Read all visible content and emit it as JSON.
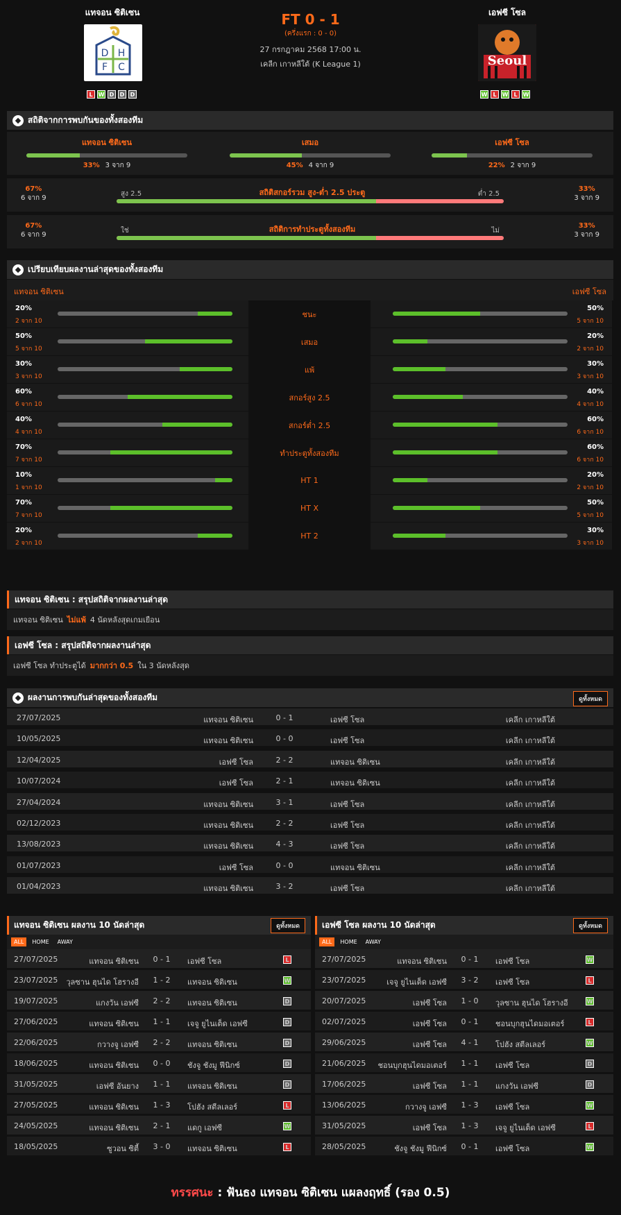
{
  "match": {
    "home": "แทจอน ซิติเซน",
    "away": "เอฟซี โซล",
    "score": "FT 0 - 1",
    "half": "(ครึ่งแรก : 0 - 0)",
    "datetime": "27 กรกฎาคม 2568 17:00 น.",
    "league": "เคลีก เกาหลีใต้ (K League 1)",
    "home_logo_text": [
      "D",
      "H",
      "F",
      "C"
    ],
    "away_logo_text": "Seoul",
    "home_form": [
      "L",
      "W",
      "D",
      "D",
      "D"
    ],
    "away_form": [
      "W",
      "L",
      "W",
      "L",
      "W"
    ]
  },
  "h2h_stats": {
    "title": "สถิติจากการพบกันของทั้งสองทีม",
    "cols": [
      {
        "label": "แทจอน ซิติเซน",
        "pct": "33%",
        "count": "3 จาก 9",
        "value": 0.33
      },
      {
        "label": "เสมอ",
        "pct": "45%",
        "count": "4 จาก 9",
        "value": 0.45
      },
      {
        "label": "เอฟซี โซล",
        "pct": "22%",
        "count": "2 จาก 9",
        "value": 0.22
      }
    ],
    "ou": {
      "title": "สถิติสกอร์รวม สูง-ต่ำ 2.5 ประตู",
      "left_label": "สูง 2.5",
      "right_label": "ต่ำ 2.5",
      "left_pct": "67%",
      "left_count": "6 จาก 9",
      "right_pct": "33%",
      "right_count": "3 จาก 9",
      "value": 0.67
    },
    "btts": {
      "title": "สถิติการทำประตูทั้งสองทีม",
      "left_label": "ใช่",
      "right_label": "ไม่",
      "left_pct": "67%",
      "left_count": "6 จาก 9",
      "right_pct": "33%",
      "right_count": "3 จาก 9",
      "value": 0.67
    }
  },
  "compare": {
    "title": "เปรียบเทียบผลงานล่าสุดของทั้งสองทีม",
    "home": "แทจอน ซิติเซน",
    "away": "เอฟซี โซล",
    "rows": [
      {
        "label": "ชนะ",
        "hp": "20%",
        "hc": "2 จาก 10",
        "hv": 0.2,
        "ap": "50%",
        "ac": "5 จาก 10",
        "av": 0.5
      },
      {
        "label": "เสมอ",
        "hp": "50%",
        "hc": "5 จาก 10",
        "hv": 0.5,
        "ap": "20%",
        "ac": "2 จาก 10",
        "av": 0.2
      },
      {
        "label": "แพ้",
        "hp": "30%",
        "hc": "3 จาก 10",
        "hv": 0.3,
        "ap": "30%",
        "ac": "3 จาก 10",
        "av": 0.3
      },
      {
        "label": "สกอร์สูง 2.5",
        "hp": "60%",
        "hc": "6 จาก 10",
        "hv": 0.6,
        "ap": "40%",
        "ac": "4 จาก 10",
        "av": 0.4
      },
      {
        "label": "สกอร์ต่ำ 2.5",
        "hp": "40%",
        "hc": "4 จาก 10",
        "hv": 0.4,
        "ap": "60%",
        "ac": "6 จาก 10",
        "av": 0.6
      },
      {
        "label": "ทำประตูทั้งสองทีม",
        "hp": "70%",
        "hc": "7 จาก 10",
        "hv": 0.7,
        "ap": "60%",
        "ac": "6 จาก 10",
        "av": 0.6
      },
      {
        "label": "HT 1",
        "hp": "10%",
        "hc": "1 จาก 10",
        "hv": 0.1,
        "ap": "20%",
        "ac": "2 จาก 10",
        "av": 0.2
      },
      {
        "label": "HT X",
        "hp": "70%",
        "hc": "7 จาก 10",
        "hv": 0.7,
        "ap": "50%",
        "ac": "5 จาก 10",
        "av": 0.5
      },
      {
        "label": "HT 2",
        "hp": "20%",
        "hc": "2 จาก 10",
        "hv": 0.2,
        "ap": "30%",
        "ac": "3 จาก 10",
        "av": 0.3
      }
    ]
  },
  "summary": {
    "home_title": "แทจอน ซิติเซน : สรุปสถิติจากผลงานล่าสุด",
    "home_pre": "แทจอน ซิติเซน",
    "home_hl": "ไม่แพ้",
    "home_post": "4 นัดหลังสุดเกมเยือน",
    "away_title": "เอฟซี โซล : สรุปสถิติจากผลงานล่าสุด",
    "away_pre": "เอฟซี โซล ทำประตูได้",
    "away_hl": "มากกว่า 0.5",
    "away_post": "ใน 3 นัดหลังสุด"
  },
  "h2h_results": {
    "title": "ผลงานการพบกันล่าสุดของทั้งสองทีม",
    "see_all": "ดูทั้งหมด",
    "rows": [
      {
        "date": "27/07/2025",
        "home": "แทจอน ซิติเซน",
        "score": "0 - 1",
        "away": "เอฟซี โซล",
        "league": "เคลีก เกาหลีใต้"
      },
      {
        "date": "10/05/2025",
        "home": "แทจอน ซิติเซน",
        "score": "0 - 0",
        "away": "เอฟซี โซล",
        "league": "เคลีก เกาหลีใต้"
      },
      {
        "date": "12/04/2025",
        "home": "เอฟซี โซล",
        "score": "2 - 2",
        "away": "แทจอน ซิติเซน",
        "league": "เคลีก เกาหลีใต้"
      },
      {
        "date": "10/07/2024",
        "home": "เอฟซี โซล",
        "score": "2 - 1",
        "away": "แทจอน ซิติเซน",
        "league": "เคลีก เกาหลีใต้"
      },
      {
        "date": "27/04/2024",
        "home": "แทจอน ซิติเซน",
        "score": "3 - 1",
        "away": "เอฟซี โซล",
        "league": "เคลีก เกาหลีใต้"
      },
      {
        "date": "02/12/2023",
        "home": "แทจอน ซิติเซน",
        "score": "2 - 2",
        "away": "เอฟซี โซล",
        "league": "เคลีก เกาหลีใต้"
      },
      {
        "date": "13/08/2023",
        "home": "แทจอน ซิติเซน",
        "score": "4 - 3",
        "away": "เอฟซี โซล",
        "league": "เคลีก เกาหลีใต้"
      },
      {
        "date": "01/07/2023",
        "home": "เอฟซี โซล",
        "score": "0 - 0",
        "away": "แทจอน ซิติเซน",
        "league": "เคลีก เกาหลีใต้"
      },
      {
        "date": "01/04/2023",
        "home": "แทจอน ซิติเซน",
        "score": "3 - 2",
        "away": "เอฟซี โซล",
        "league": "เคลีก เกาหลีใต้"
      }
    ]
  },
  "last10": {
    "see_all": "ดูทั้งหมด",
    "tabs": [
      "ALL",
      "HOME",
      "AWAY"
    ],
    "home": {
      "title": "แทจอน ซิติเซน ผลงาน 10 นัดล่าสุด",
      "rows": [
        {
          "date": "27/07/2025",
          "home": "แทจอน ซิติเซน",
          "score": "0 - 1",
          "away": "เอฟซี โซล",
          "r": "L"
        },
        {
          "date": "23/07/2025",
          "home": "วุลซาน ฮุนได โฮรางอี",
          "score": "1 - 2",
          "away": "แทจอน ซิติเซน",
          "r": "W"
        },
        {
          "date": "19/07/2025",
          "home": "แกงวัน เอฟซี",
          "score": "2 - 2",
          "away": "แทจอน ซิติเซน",
          "r": "D"
        },
        {
          "date": "27/06/2025",
          "home": "แทจอน ซิติเซน",
          "score": "1 - 1",
          "away": "เจจู ยูไนเต็ด เอฟซี",
          "r": "D"
        },
        {
          "date": "22/06/2025",
          "home": "กวางจู เอฟซี",
          "score": "2 - 2",
          "away": "แทจอน ซิติเซน",
          "r": "D"
        },
        {
          "date": "18/06/2025",
          "home": "แทจอน ซิติเซน",
          "score": "0 - 0",
          "away": "ชังจู ชังมู ฟีนิกซ์",
          "r": "D"
        },
        {
          "date": "31/05/2025",
          "home": "เอฟซี อันยาง",
          "score": "1 - 1",
          "away": "แทจอน ซิติเซน",
          "r": "D"
        },
        {
          "date": "27/05/2025",
          "home": "แทจอน ซิติเซน",
          "score": "1 - 3",
          "away": "โปฮัง สตีลเลอร์",
          "r": "L"
        },
        {
          "date": "24/05/2025",
          "home": "แทจอน ซิติเซน",
          "score": "2 - 1",
          "away": "แดกู เอฟซี",
          "r": "W"
        },
        {
          "date": "18/05/2025",
          "home": "ซูวอน ซิตี้",
          "score": "3 - 0",
          "away": "แทจอน ซิติเซน",
          "r": "L"
        }
      ]
    },
    "away": {
      "title": "เอฟซี โซล ผลงาน 10 นัดล่าสุด",
      "rows": [
        {
          "date": "27/07/2025",
          "home": "แทจอน ซิติเซน",
          "score": "0 - 1",
          "away": "เอฟซี โซล",
          "r": "W"
        },
        {
          "date": "23/07/2025",
          "home": "เจจู ยูไนเต็ด เอฟซี",
          "score": "3 - 2",
          "away": "เอฟซี โซล",
          "r": "L"
        },
        {
          "date": "20/07/2025",
          "home": "เอฟซี โซล",
          "score": "1 - 0",
          "away": "วุลซาน ฮุนได โฮรางอี",
          "r": "W"
        },
        {
          "date": "02/07/2025",
          "home": "เอฟซี โซล",
          "score": "0 - 1",
          "away": "ชอนบุกฮุนไดมอเตอร์",
          "r": "L"
        },
        {
          "date": "29/06/2025",
          "home": "เอฟซี โซล",
          "score": "4 - 1",
          "away": "โปฮัง สตีลเลอร์",
          "r": "W"
        },
        {
          "date": "21/06/2025",
          "home": "ชอนบุกฮุนไดมอเตอร์",
          "score": "1 - 1",
          "away": "เอฟซี โซล",
          "r": "D"
        },
        {
          "date": "17/06/2025",
          "home": "เอฟซี โซล",
          "score": "1 - 1",
          "away": "แกงวัน เอฟซี",
          "r": "D"
        },
        {
          "date": "13/06/2025",
          "home": "กวางจู เอฟซี",
          "score": "1 - 3",
          "away": "เอฟซี โซล",
          "r": "W"
        },
        {
          "date": "31/05/2025",
          "home": "เอฟซี โซล",
          "score": "1 - 3",
          "away": "เจจู ยูไนเต็ด เอฟซี",
          "r": "L"
        },
        {
          "date": "28/05/2025",
          "home": "ชังจู ชังมู ฟีนิกซ์",
          "score": "0 - 1",
          "away": "เอฟซี โซล",
          "r": "W"
        }
      ]
    }
  },
  "verdict": {
    "label": "ทรรศนะ",
    "sep": ":",
    "text": "ฟันธง แทจอน ซิติเซน แผลงฤทธิ์ (รอง 0.5)"
  },
  "colors": {
    "accent": "#ff6a1a",
    "win": "#5cbf2a",
    "loss": "#d92b2b",
    "draw": "#666666",
    "bar_green": "#7dc44e",
    "bar_red": "#ff7a7a"
  }
}
